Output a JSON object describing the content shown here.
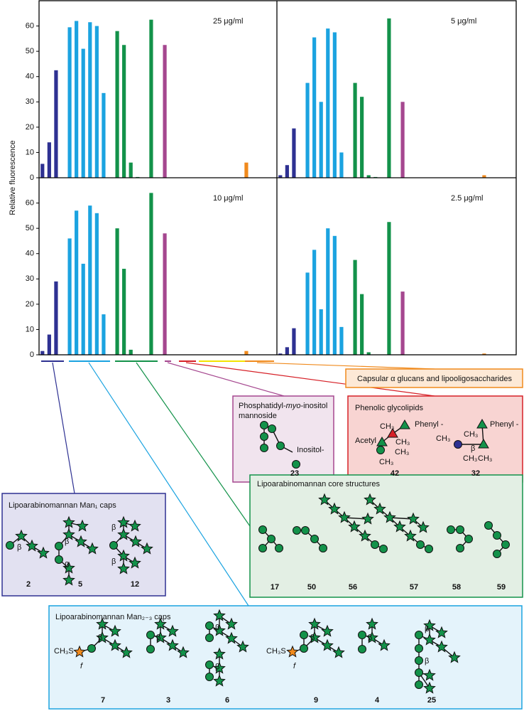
{
  "chart_data": [
    {
      "type": "bar",
      "subtitle": "25 μg/ml",
      "ylabel": "Relative fluorescence",
      "categories": [
        null,
        null,
        null,
        null,
        null,
        null,
        null,
        null,
        null,
        null,
        null,
        null,
        null,
        null,
        null,
        null,
        null,
        null,
        null,
        null,
        null,
        null,
        null,
        null,
        null,
        null,
        null,
        null,
        null,
        null,
        null,
        null,
        null,
        null,
        null
      ],
      "ylim": [
        0,
        70
      ],
      "yticks": [
        0,
        10,
        20,
        30,
        40,
        50,
        60
      ],
      "series": [
        {
          "color": "#2e3192",
          "values": [
            5.5,
            14,
            42.5,
            null,
            null,
            null,
            null,
            null,
            null,
            null,
            null,
            null,
            null,
            null,
            null,
            null,
            null,
            null,
            null,
            null,
            null,
            null,
            null,
            null,
            null,
            null,
            null,
            null,
            null,
            null,
            null,
            null,
            null,
            null,
            null
          ]
        },
        {
          "color": "#1ba3e0",
          "values": [
            null,
            null,
            null,
            null,
            59.5,
            62,
            51,
            61.5,
            60,
            33.5,
            null,
            null,
            null,
            null,
            null,
            null,
            null,
            null,
            null,
            null,
            null,
            null,
            null,
            null,
            null,
            null,
            null,
            null,
            null,
            null,
            null,
            null,
            null,
            null,
            null
          ]
        },
        {
          "color": "#13924a",
          "values": [
            null,
            null,
            null,
            null,
            null,
            null,
            null,
            null,
            null,
            null,
            null,
            58,
            52.5,
            6,
            0.3,
            0,
            62.5,
            null,
            null,
            null,
            null,
            null,
            null,
            null,
            null,
            null,
            null,
            null,
            null,
            null,
            null,
            null,
            null,
            null,
            null
          ]
        },
        {
          "color": "#a5478f",
          "values": [
            null,
            null,
            null,
            null,
            null,
            null,
            null,
            null,
            null,
            null,
            null,
            null,
            null,
            null,
            null,
            null,
            null,
            null,
            52.5,
            null,
            null,
            null,
            null,
            null,
            null,
            null,
            null,
            null,
            null,
            null,
            null,
            null,
            null,
            null,
            null
          ]
        },
        {
          "color": "#f08a1d",
          "values": [
            null,
            null,
            null,
            null,
            null,
            null,
            null,
            null,
            null,
            null,
            null,
            null,
            null,
            null,
            null,
            null,
            null,
            null,
            null,
            null,
            null,
            null,
            null,
            null,
            null,
            null,
            null,
            null,
            null,
            null,
            6,
            null,
            null,
            null,
            null
          ]
        }
      ]
    },
    {
      "type": "bar",
      "subtitle": "5 μg/ml",
      "categories": [
        null,
        null,
        null,
        null,
        null,
        null,
        null,
        null,
        null,
        null,
        null,
        null,
        null,
        null,
        null,
        null,
        null,
        null,
        null,
        null,
        null,
        null,
        null,
        null,
        null,
        null,
        null,
        null,
        null,
        null,
        null,
        null,
        null,
        null,
        null
      ],
      "ylim": [
        0,
        70
      ],
      "series": [
        {
          "color": "#2e3192",
          "values": [
            1,
            5,
            19.5,
            null,
            null,
            null,
            null,
            null,
            null,
            null,
            null,
            null,
            null,
            null,
            null,
            null,
            null,
            null,
            null,
            null,
            null,
            null,
            null,
            null,
            null,
            null,
            null,
            null,
            null,
            null,
            null,
            null,
            null,
            null,
            null
          ]
        },
        {
          "color": "#1ba3e0",
          "values": [
            null,
            null,
            null,
            null,
            37.5,
            55.5,
            30,
            59,
            57.5,
            10,
            null,
            null,
            null,
            null,
            null,
            null,
            null,
            null,
            null,
            null,
            null,
            null,
            null,
            null,
            null,
            null,
            null,
            null,
            null,
            null,
            null,
            null,
            null,
            null,
            null
          ]
        },
        {
          "color": "#13924a",
          "values": [
            null,
            null,
            null,
            null,
            null,
            null,
            null,
            null,
            null,
            null,
            null,
            37.5,
            32,
            1,
            0.3,
            0,
            63,
            null,
            null,
            null,
            null,
            null,
            null,
            null,
            null,
            null,
            null,
            null,
            null,
            null,
            null,
            null,
            null,
            null,
            null
          ]
        },
        {
          "color": "#a5478f",
          "values": [
            null,
            null,
            null,
            null,
            null,
            null,
            null,
            null,
            null,
            null,
            null,
            null,
            null,
            null,
            null,
            null,
            null,
            null,
            30,
            null,
            null,
            null,
            null,
            null,
            null,
            null,
            null,
            null,
            null,
            null,
            null,
            null,
            null,
            null,
            null
          ]
        },
        {
          "color": "#f08a1d",
          "values": [
            null,
            null,
            null,
            null,
            null,
            null,
            null,
            null,
            null,
            null,
            null,
            null,
            null,
            null,
            null,
            null,
            null,
            null,
            null,
            null,
            null,
            null,
            null,
            null,
            null,
            null,
            null,
            null,
            null,
            null,
            1,
            null,
            null,
            null,
            null
          ]
        }
      ]
    },
    {
      "type": "bar",
      "subtitle": "10 μg/ml",
      "categories": [
        null,
        null,
        null,
        null,
        null,
        null,
        null,
        null,
        null,
        null,
        null,
        null,
        null,
        null,
        null,
        null,
        null,
        null,
        null,
        null,
        null,
        null,
        null,
        null,
        null,
        null,
        null,
        null,
        null,
        null,
        null,
        null,
        null,
        null,
        null
      ],
      "ylim": [
        0,
        70
      ],
      "yticks": [
        0,
        10,
        20,
        30,
        40,
        50,
        60
      ],
      "series": [
        {
          "color": "#2e3192",
          "values": [
            1.5,
            8,
            29,
            null,
            null,
            null,
            null,
            null,
            null,
            null,
            null,
            null,
            null,
            null,
            null,
            null,
            null,
            null,
            null,
            null,
            null,
            null,
            null,
            null,
            null,
            null,
            null,
            null,
            null,
            null,
            null,
            null,
            null,
            null,
            null
          ]
        },
        {
          "color": "#1ba3e0",
          "values": [
            null,
            null,
            null,
            null,
            46,
            57,
            36,
            59,
            56,
            16,
            null,
            null,
            null,
            null,
            null,
            null,
            null,
            null,
            null,
            null,
            null,
            null,
            null,
            null,
            null,
            null,
            null,
            null,
            null,
            null,
            null,
            null,
            null,
            null,
            null
          ]
        },
        {
          "color": "#13924a",
          "values": [
            null,
            null,
            null,
            null,
            null,
            null,
            null,
            null,
            null,
            null,
            null,
            50,
            34,
            2,
            0,
            0,
            64,
            null,
            null,
            null,
            null,
            null,
            null,
            null,
            null,
            null,
            null,
            null,
            null,
            null,
            null,
            null,
            null,
            null,
            null
          ]
        },
        {
          "color": "#a5478f",
          "values": [
            null,
            null,
            null,
            null,
            null,
            null,
            null,
            null,
            null,
            null,
            null,
            null,
            null,
            null,
            null,
            null,
            null,
            null,
            48,
            null,
            null,
            null,
            null,
            null,
            null,
            null,
            null,
            null,
            null,
            null,
            null,
            null,
            null,
            null,
            null
          ]
        },
        {
          "color": "#f08a1d",
          "values": [
            null,
            null,
            null,
            null,
            null,
            null,
            null,
            null,
            null,
            null,
            null,
            null,
            null,
            null,
            null,
            null,
            null,
            null,
            null,
            null,
            null,
            null,
            null,
            null,
            null,
            null,
            null,
            null,
            null,
            null,
            1.5,
            null,
            null,
            null,
            null
          ]
        }
      ]
    },
    {
      "type": "bar",
      "subtitle": "2.5 μg/ml",
      "categories": [
        null,
        null,
        null,
        null,
        null,
        null,
        null,
        null,
        null,
        null,
        null,
        null,
        null,
        null,
        null,
        null,
        null,
        null,
        null,
        null,
        null,
        null,
        null,
        null,
        null,
        null,
        null,
        null,
        null,
        null,
        null,
        null,
        null,
        null,
        null
      ],
      "ylim": [
        0,
        70
      ],
      "series": [
        {
          "color": "#2e3192",
          "values": [
            0.5,
            3,
            10.5,
            null,
            null,
            null,
            null,
            null,
            null,
            null,
            null,
            null,
            null,
            null,
            null,
            null,
            null,
            null,
            null,
            null,
            null,
            null,
            null,
            null,
            null,
            null,
            null,
            null,
            null,
            null,
            null,
            null,
            null,
            null,
            null
          ]
        },
        {
          "color": "#1ba3e0",
          "values": [
            null,
            null,
            null,
            null,
            32.5,
            41.5,
            18,
            50,
            47,
            11,
            null,
            null,
            null,
            null,
            null,
            null,
            null,
            null,
            null,
            null,
            null,
            null,
            null,
            null,
            null,
            null,
            null,
            null,
            null,
            null,
            null,
            null,
            null,
            null,
            null
          ]
        },
        {
          "color": "#13924a",
          "values": [
            null,
            null,
            null,
            null,
            null,
            null,
            null,
            null,
            null,
            null,
            null,
            37.5,
            24,
            1,
            0,
            0,
            52.5,
            null,
            null,
            null,
            null,
            null,
            null,
            null,
            null,
            null,
            null,
            null,
            null,
            null,
            null,
            null,
            null,
            null,
            null
          ]
        },
        {
          "color": "#a5478f",
          "values": [
            null,
            null,
            null,
            null,
            null,
            null,
            null,
            null,
            null,
            null,
            null,
            null,
            null,
            null,
            null,
            null,
            null,
            null,
            25,
            null,
            null,
            null,
            null,
            null,
            null,
            null,
            null,
            null,
            null,
            null,
            null,
            null,
            null,
            null,
            null
          ]
        },
        {
          "color": "#f08a1d",
          "values": [
            null,
            null,
            null,
            null,
            null,
            null,
            null,
            null,
            null,
            null,
            null,
            null,
            null,
            null,
            null,
            null,
            null,
            null,
            null,
            null,
            null,
            null,
            null,
            null,
            null,
            null,
            null,
            null,
            null,
            null,
            0.5,
            null,
            null,
            null,
            null
          ]
        }
      ]
    }
  ],
  "boxes": [
    {
      "title": "Capsular α glucans and lipooligosaccharides"
    },
    {
      "title_parts": [
        "Phosphatidyl-",
        "myo",
        "-inositol"
      ],
      "title_line2": "mannoside",
      "compounds": [
        {
          "id": "23",
          "labels": [
            "Inositol-"
          ]
        }
      ]
    },
    {
      "title": "Phenolic glycolipids",
      "compounds": [
        {
          "id": "42",
          "labels": [
            "CH₃",
            "Phenyl -",
            "Acetyl",
            "CH₃",
            "CH₃",
            "CH₃"
          ]
        },
        {
          "id": "32",
          "labels": [
            "CH₃",
            "CH₃",
            "Phenyl -",
            "β",
            "CH₃",
            "CH₃"
          ]
        }
      ]
    },
    {
      "title": "Lipoarabinomannan Man₁ caps",
      "compounds": [
        {
          "id": "2",
          "labels": [
            "β"
          ]
        },
        {
          "id": "5",
          "labels": [
            "β",
            "β"
          ]
        },
        {
          "id": "12",
          "labels": [
            "β",
            "β"
          ]
        }
      ]
    },
    {
      "title": "Lipoarabinomannan core structures",
      "compounds": [
        {
          "id": "17"
        },
        {
          "id": "50"
        },
        {
          "id": "56"
        },
        {
          "id": "57"
        },
        {
          "id": "58"
        },
        {
          "id": "59"
        }
      ]
    },
    {
      "title": "Lipoarabinomannan Man₂₋₃ caps",
      "compounds": [
        {
          "id": "7",
          "labels": [
            "CH₃S",
            "f",
            "β"
          ]
        },
        {
          "id": "3",
          "labels": [
            "β"
          ]
        },
        {
          "id": "6",
          "labels": [
            "β",
            "β"
          ]
        },
        {
          "id": "9",
          "labels": [
            "CH₃S",
            "f",
            "β"
          ]
        },
        {
          "id": "4",
          "labels": [
            "β"
          ]
        },
        {
          "id": "25",
          "labels": [
            "β",
            "β"
          ]
        }
      ]
    }
  ]
}
